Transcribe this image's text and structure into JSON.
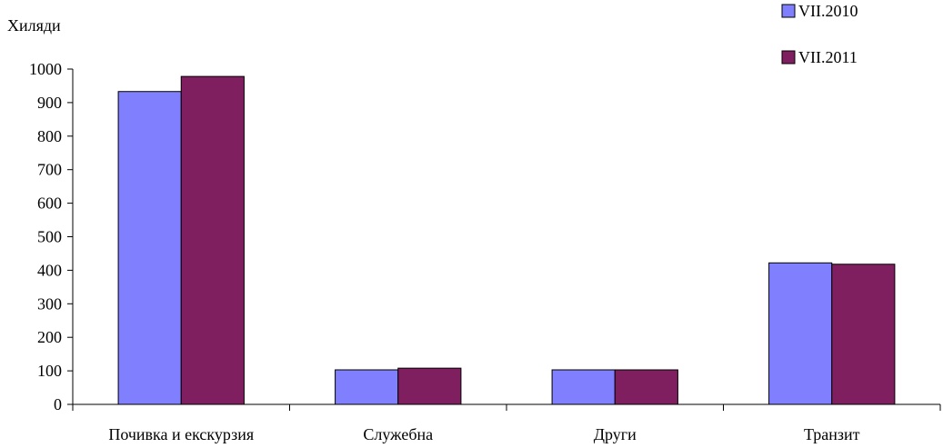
{
  "chart_data": {
    "type": "bar",
    "ylabel": "Хиляди",
    "categories": [
      "Почивка и екскурзия",
      "Служебна",
      "Други",
      "Транзит"
    ],
    "series": [
      {
        "name": "VII.2010",
        "values": [
          933,
          103,
          103,
          422
        ],
        "color": "#8080FF"
      },
      {
        "name": "VII.2011",
        "values": [
          978,
          108,
          103,
          418
        ],
        "color": "#7F1F5F"
      }
    ],
    "ylim": [
      0,
      1000
    ],
    "yticks": [
      0,
      100,
      200,
      300,
      400,
      500,
      600,
      700,
      800,
      900,
      1000
    ],
    "grid": false,
    "legend": "top-right"
  }
}
